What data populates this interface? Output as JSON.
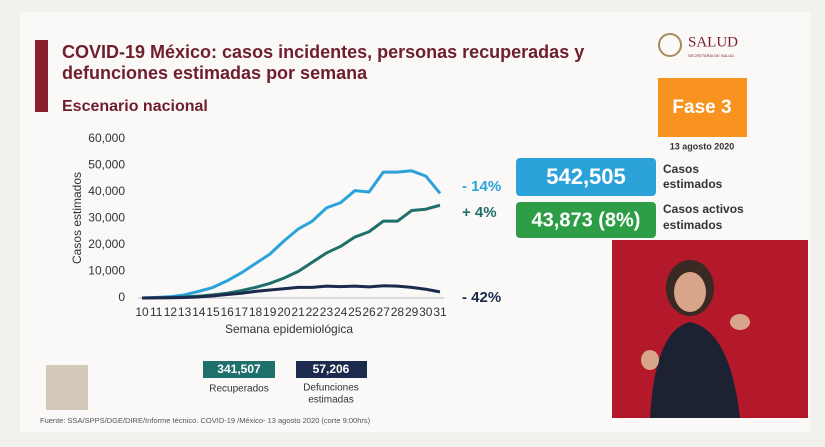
{
  "chart_data": {
    "type": "line",
    "title_lines": [
      "COVID-19 México: casos incidentes, personas recuperadas y",
      "defunciones estimadas por semana"
    ],
    "subtitle": "Escenario nacional",
    "x_label": "Semana epidemiológica",
    "y_label": "Casos estimados",
    "x": [
      10,
      11,
      12,
      13,
      14,
      15,
      16,
      17,
      18,
      19,
      20,
      21,
      22,
      23,
      24,
      25,
      26,
      27,
      28,
      29,
      30,
      31
    ],
    "xlim": [
      10,
      31
    ],
    "xticks": [
      10,
      11,
      12,
      13,
      14,
      15,
      16,
      17,
      18,
      19,
      20,
      21,
      22,
      23,
      24,
      25,
      26,
      27,
      28,
      29,
      30,
      31
    ],
    "ylim": [
      0,
      60000
    ],
    "yticks": [
      0,
      {
        "value": 10000,
        "label": "10,000"
      },
      {
        "value": 20000,
        "label": "20,000"
      },
      {
        "value": 30000,
        "label": "30,000"
      },
      {
        "value": 40000,
        "label": "40,000"
      },
      {
        "value": 50000,
        "label": "50,000"
      },
      {
        "value": 60000,
        "label": "60,000"
      }
    ],
    "series": [
      {
        "color": "#2ba3da",
        "annotation": "- 14%",
        "values": [
          0,
          200,
          500,
          1200,
          2500,
          4000,
          6500,
          9500,
          13000,
          16500,
          21500,
          26000,
          29000,
          34000,
          36000,
          40500,
          40000,
          47500,
          47500,
          48000,
          46000,
          39500
        ]
      },
      {
        "color": "#1f6f6b",
        "annotation": "+ 4%",
        "values": [
          0,
          100,
          200,
          400,
          700,
          1200,
          1800,
          2800,
          4000,
          5500,
          7500,
          10000,
          13500,
          17000,
          19500,
          23000,
          25000,
          29000,
          29000,
          33000,
          33500,
          35000
        ]
      },
      {
        "color": "#1c2a4d",
        "annotation": "- 42%",
        "values": [
          0,
          50,
          100,
          200,
          400,
          800,
          1300,
          1800,
          2500,
          3000,
          3500,
          4000,
          4000,
          4500,
          4300,
          4500,
          4200,
          4600,
          4500,
          4000,
          3300,
          2300
        ]
      }
    ]
  },
  "summary": {
    "recovered": {
      "value": "341,507",
      "label": "Recuperados"
    },
    "deaths": {
      "value": "57,206",
      "label_lines": [
        "Defunciones",
        "estimadas"
      ]
    }
  },
  "side": {
    "logo": "SALUD",
    "logo_sub": "SECRETARÍA DE SALUD",
    "phase": "Fase 3",
    "date": "13 agosto 2020",
    "cases": {
      "value": "542,505",
      "label_lines": [
        "Casos",
        "estimados"
      ]
    },
    "active": {
      "value": "43,873 (8%)",
      "label_lines": [
        "Casos activos",
        "estimados"
      ]
    }
  },
  "footer": "Fuente: SSA/SPPS/DGE/DIRE/Informe técnico. COVID-19 /México- 13 agosto 2020 (corte 9:00hrs)"
}
